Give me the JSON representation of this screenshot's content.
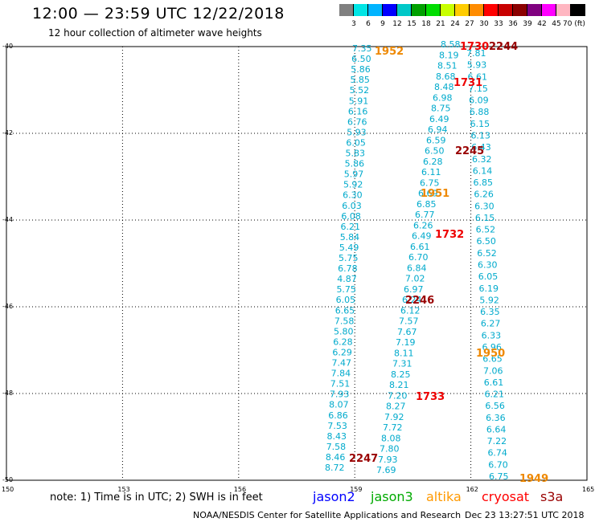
{
  "header": {
    "title": "12:00 — 23:59 UTC 12/22/2018",
    "subtitle": "12 hour collection of altimeter wave heights"
  },
  "colorbar": {
    "colors": [
      "#808080",
      "#00e5e5",
      "#00b4ff",
      "#0000ff",
      "#00c8c8",
      "#00a000",
      "#00dd00",
      "#c8ff00",
      "#ffcc00",
      "#ff8c00",
      "#ff0000",
      "#c80000",
      "#8b0000",
      "#800080",
      "#ff00ff",
      "#ffb6c1",
      "#000000"
    ],
    "labels": [
      "3",
      "6",
      "9",
      "12",
      "15",
      "18",
      "21",
      "24",
      "27",
      "30",
      "33",
      "36",
      "39",
      "42",
      "45",
      "70 (ft)"
    ]
  },
  "map": {
    "lat_labels": [
      "-40",
      "-42",
      "-44",
      "-46",
      "-48",
      "-50"
    ],
    "lon_labels": [
      "150",
      "153",
      "156",
      "159",
      "162",
      "165"
    ]
  },
  "tracks": [
    {
      "name": "track-a",
      "color": "#00aacc",
      "values": [
        "7.35",
        "6.50",
        "5.86",
        "5.85",
        "5.52",
        "5.91",
        "6.16",
        "6.76",
        "5.93",
        "6.05",
        "5.83",
        "5.86",
        "5.97",
        "5.92",
        "6.30",
        "6.03",
        "6.08",
        "6.21",
        "5.84",
        "5.49",
        "5.75",
        "6.78",
        "4.87",
        "5.75",
        "6.05",
        "6.65",
        "7.58",
        "5.80",
        "6.28",
        "6.29",
        "7.47",
        "7.84",
        "7.51",
        "7.93",
        "8.07",
        "6.86",
        "7.53",
        "8.43",
        "7.58",
        "8.46",
        "8.72"
      ]
    },
    {
      "name": "track-b",
      "color": "#00aacc",
      "values": [
        "8.58",
        "8.19",
        "8.51",
        "8.68",
        "8.48",
        "6.98",
        "8.75",
        "6.49",
        "6.94",
        "6.59",
        "6.50",
        "6.28",
        "6.11",
        "6.75",
        "6.69",
        "6.85",
        "6.77",
        "6.26",
        "6.49",
        "6.61",
        "6.70",
        "6.84",
        "7.02",
        "6.97",
        "6.24",
        "6.12",
        "7.57",
        "7.67",
        "7.19",
        "8.11",
        "7.31",
        "8.25",
        "8.21",
        "7.20",
        "8.27",
        "7.92",
        "7.72",
        "8.08",
        "7.80",
        "7.93",
        "7.69"
      ]
    },
    {
      "name": "track-c",
      "color": "#00aacc",
      "values": [
        "7.81",
        "5.93",
        "6.61",
        "7.15",
        "6.09",
        "6.88",
        "6.15",
        "6.13",
        "6.43",
        "6.32",
        "6.14",
        "6.85",
        "6.26",
        "6.30",
        "6.15",
        "6.52",
        "6.50",
        "6.52",
        "6.30",
        "6.05",
        "6.19",
        "5.92",
        "6.35",
        "6.27",
        "6.33",
        "6.96",
        "6.65",
        "7.06",
        "6.61",
        "6.21",
        "6.56",
        "6.36",
        "6.64",
        "7.22",
        "6.74",
        "6.70",
        "6.75"
      ]
    }
  ],
  "time_labels": [
    {
      "text": "1952",
      "color": "#ee8800"
    },
    {
      "text": "1730",
      "color": "#ee0000"
    },
    {
      "text": "2244",
      "color": "#990000"
    },
    {
      "text": "1731",
      "color": "#ee0000"
    },
    {
      "text": "2245",
      "color": "#990000"
    },
    {
      "text": "1951",
      "color": "#ee8800"
    },
    {
      "text": "1732",
      "color": "#ee0000"
    },
    {
      "text": "2246",
      "color": "#990000"
    },
    {
      "text": "1950",
      "color": "#ee8800"
    },
    {
      "text": "1733",
      "color": "#ee0000"
    },
    {
      "text": "2247",
      "color": "#990000"
    },
    {
      "text": "1949",
      "color": "#ee8800"
    }
  ],
  "footer": {
    "note": "note: 1) Time is in UTC; 2) SWH is in feet",
    "legend": [
      {
        "label": "jason2",
        "color": "#0000ff"
      },
      {
        "label": "jason3",
        "color": "#00aa00"
      },
      {
        "label": "altika",
        "color": "#ff9900"
      },
      {
        "label": "cryosat",
        "color": "#ff0000"
      },
      {
        "label": "s3a",
        "color": "#990000"
      }
    ],
    "credit": "NOAA/NESDIS Center for Satellite Applications and Research",
    "timestamp": "Dec 23 13:27:51 UTC 2018"
  }
}
